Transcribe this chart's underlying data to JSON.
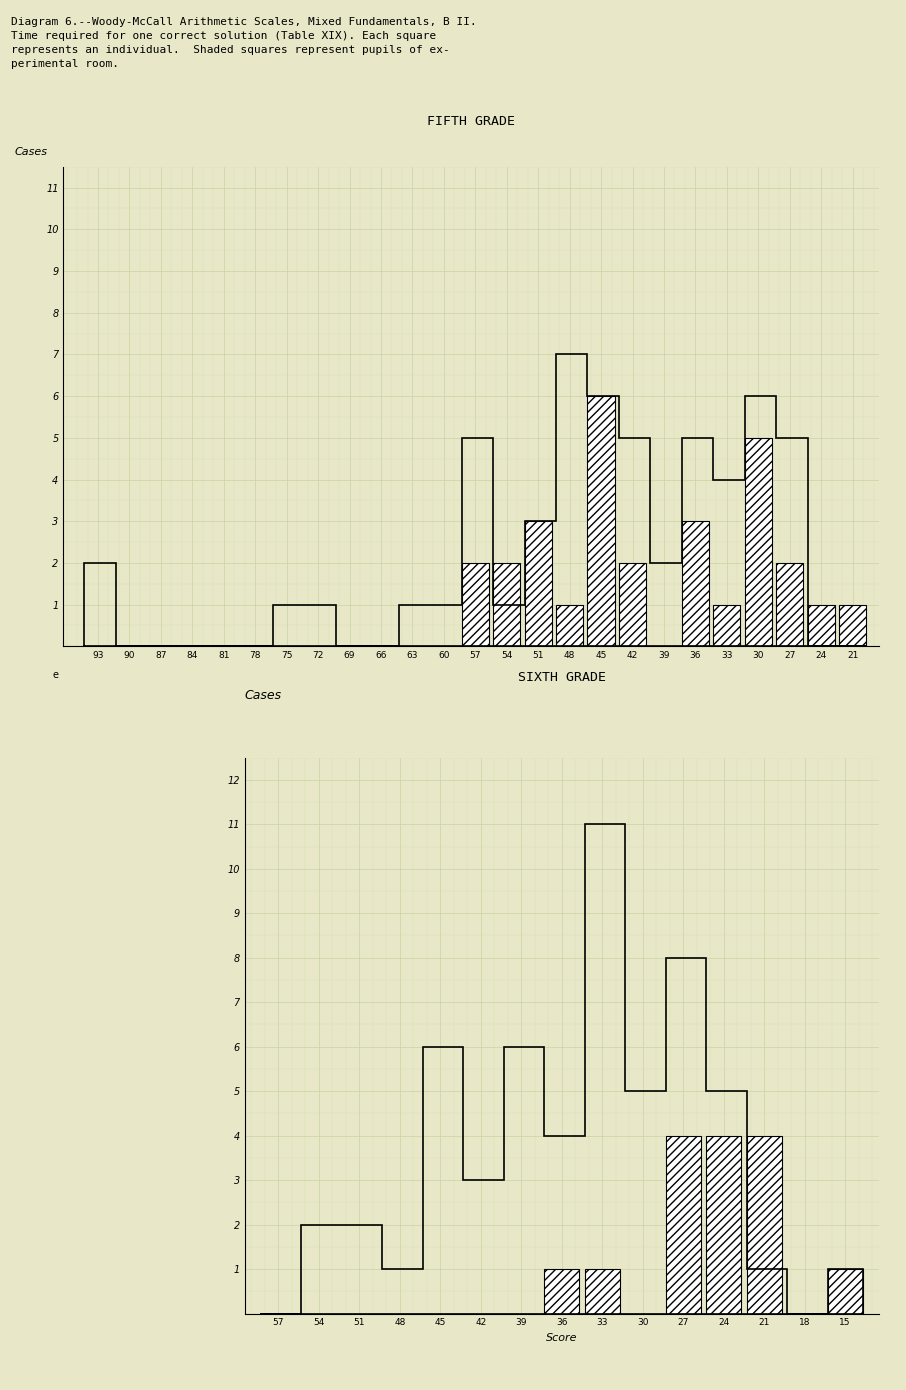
{
  "title_text": "Diagram 6.--Woody-McCall Arithmetic Scales, Mixed Fundamentals, B II.\nTime required for one correct solution (Table XIX). Each square\nrepresents an individual.  Shaded squares represent pupils of ex-\nperimental room.",
  "bg_color": "#e8e8c8",
  "grid_color_major": "#c8d4a0",
  "grid_color_minor": "#d8e0b0",
  "fifth_grade_title": "FIFTH GRADE",
  "sixth_grade_title": "SIXTH GRADE",
  "ylabel_5": "Cases",
  "xlabel_5": "e",
  "xlabel_6": "Score",
  "fifth_scores": [
    93,
    90,
    87,
    84,
    81,
    78,
    75,
    72,
    69,
    66,
    63,
    60,
    57,
    54,
    51,
    48,
    45,
    42,
    39,
    36,
    33,
    30,
    27,
    24,
    21
  ],
  "fifth_total": [
    2,
    0,
    0,
    0,
    0,
    0,
    1,
    1,
    0,
    0,
    1,
    1,
    5,
    1,
    3,
    7,
    6,
    5,
    2,
    5,
    4,
    6,
    5,
    0,
    0
  ],
  "fifth_selected": [
    0,
    0,
    0,
    0,
    0,
    0,
    0,
    0,
    0,
    0,
    0,
    0,
    2,
    2,
    3,
    1,
    6,
    2,
    0,
    3,
    1,
    5,
    2,
    1,
    1
  ],
  "sixth_scores": [
    57,
    54,
    51,
    48,
    45,
    42,
    39,
    36,
    33,
    30,
    27,
    24,
    21,
    18,
    15
  ],
  "sixth_total": [
    0,
    2,
    2,
    1,
    6,
    3,
    6,
    4,
    11,
    5,
    8,
    5,
    1,
    0,
    1
  ],
  "sixth_selected": [
    0,
    0,
    0,
    0,
    0,
    0,
    0,
    1,
    1,
    0,
    4,
    4,
    4,
    0,
    1
  ]
}
